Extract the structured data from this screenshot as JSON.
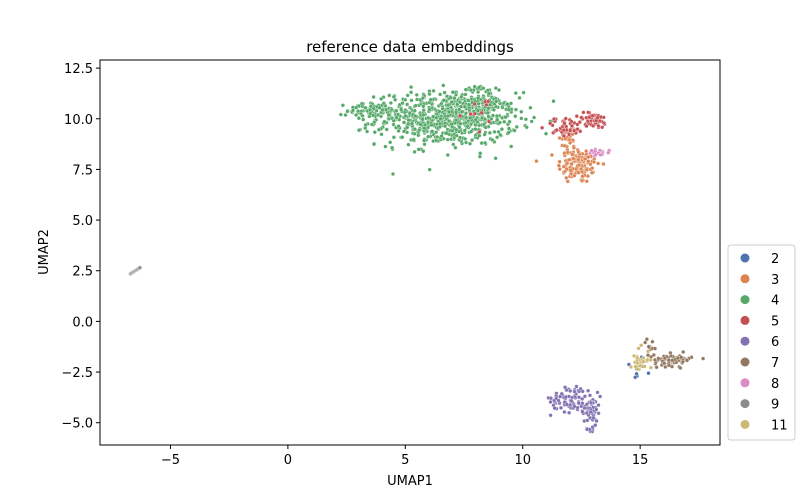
{
  "chart_data": {
    "type": "scatter",
    "title": "reference data embeddings",
    "xlabel": "UMAP1",
    "ylabel": "UMAP2",
    "xlim": [
      -8.0,
      18.4
    ],
    "ylim": [
      -6.1,
      12.9
    ],
    "xticks": [
      -5,
      0,
      5,
      10,
      15
    ],
    "xtick_labels": [
      "−5",
      "0",
      "5",
      "10",
      "15"
    ],
    "yticks": [
      -5.0,
      -2.5,
      0.0,
      2.5,
      5.0,
      7.5,
      10.0,
      12.5
    ],
    "ytick_labels": [
      "−5.0",
      "−2.5",
      "0.0",
      "2.5",
      "5.0",
      "7.5",
      "10.0",
      "12.5"
    ],
    "grid": false,
    "legend_position": "lower right, outside axes",
    "series": [
      {
        "name": "2",
        "color": "#4c72b0",
        "clusters": [
          {
            "center": [
              14.8,
              -2.3
            ],
            "spread": [
              0.2,
              0.35
            ],
            "count": 8
          }
        ]
      },
      {
        "name": "3",
        "color": "#dd8452",
        "clusters": [
          {
            "center": [
              12.4,
              7.7
            ],
            "spread": [
              0.45,
              0.45
            ],
            "count": 120
          },
          {
            "center": [
              12.0,
              8.9
            ],
            "spread": [
              0.2,
              0.5
            ],
            "count": 30
          }
        ]
      },
      {
        "name": "4",
        "color": "#55a868",
        "clusters": [
          {
            "center": [
              6.8,
              10.0
            ],
            "spread": [
              1.5,
              0.65
            ],
            "count": 700
          },
          {
            "center": [
              3.6,
              10.4
            ],
            "spread": [
              0.55,
              0.2
            ],
            "count": 70
          },
          {
            "center": [
              8.2,
              10.8
            ],
            "spread": [
              0.5,
              0.45
            ],
            "count": 80
          }
        ]
      },
      {
        "name": "5",
        "color": "#c44e52",
        "clusters": [
          {
            "center": [
              13.0,
              9.9
            ],
            "spread": [
              0.35,
              0.2
            ],
            "count": 50
          },
          {
            "center": [
              11.8,
              9.6
            ],
            "spread": [
              0.4,
              0.25
            ],
            "count": 40
          },
          {
            "center": [
              8.4,
              10.2
            ],
            "spread": [
              0.4,
              0.4
            ],
            "count": 10
          }
        ]
      },
      {
        "name": "6",
        "color": "#8172b2",
        "clusters": [
          {
            "center": [
              12.0,
              -3.8
            ],
            "spread": [
              0.4,
              0.35
            ],
            "count": 70
          },
          {
            "center": [
              12.9,
              -4.4
            ],
            "spread": [
              0.2,
              0.45
            ],
            "count": 60
          }
        ]
      },
      {
        "name": "7",
        "color": "#937860",
        "clusters": [
          {
            "center": [
              16.4,
              -1.9
            ],
            "spread": [
              0.4,
              0.15
            ],
            "count": 70
          },
          {
            "center": [
              15.5,
              -1.3
            ],
            "spread": [
              0.2,
              0.2
            ],
            "count": 10
          }
        ]
      },
      {
        "name": "8",
        "color": "#da8bc3",
        "clusters": [
          {
            "center": [
              13.1,
              8.3
            ],
            "spread": [
              0.3,
              0.1
            ],
            "count": 15
          }
        ]
      },
      {
        "name": "9",
        "color": "#8c8c8c",
        "line": {
          "from": [
            -6.7,
            2.35
          ],
          "to": [
            -6.3,
            2.65
          ],
          "count": 12
        }
      },
      {
        "name": "11",
        "color": "#ccb974",
        "clusters": [
          {
            "center": [
              15.0,
              -1.9
            ],
            "spread": [
              0.2,
              0.3
            ],
            "count": 30
          }
        ]
      }
    ]
  }
}
